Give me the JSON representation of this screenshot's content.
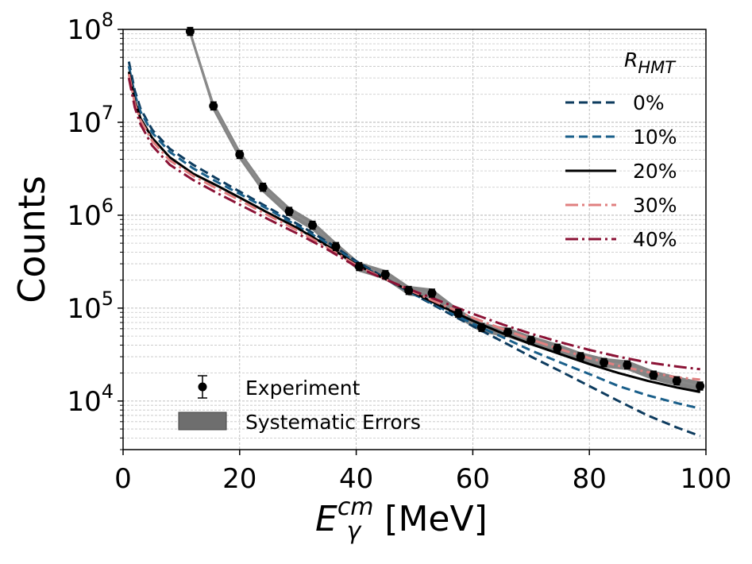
{
  "chart_data": {
    "type": "line",
    "title": "",
    "xlabel": {
      "main": "E",
      "sup": "cm",
      "sub": "γ",
      "unit": "[MeV]"
    },
    "ylabel": "Counts",
    "xlim": [
      0,
      100
    ],
    "ylim": [
      3000,
      100000000
    ],
    "yscale": "log",
    "grid": true,
    "x_ticks": [
      0,
      20,
      40,
      60,
      80,
      100
    ],
    "x_tick_labels": [
      "0",
      "20",
      "40",
      "60",
      "80",
      "100"
    ],
    "y_ticks": [
      10000,
      100000,
      1000000,
      10000000,
      100000000
    ],
    "y_tick_labels": [
      {
        "base": "10",
        "exp": "4"
      },
      {
        "base": "10",
        "exp": "5"
      },
      {
        "base": "10",
        "exp": "6"
      },
      {
        "base": "10",
        "exp": "7"
      },
      {
        "base": "10",
        "exp": "8"
      }
    ],
    "legend_model": {
      "title": {
        "main": "R",
        "sub": "HMT"
      },
      "placement": "top-right",
      "entries": [
        "0%",
        "10%",
        "20%",
        "30%",
        "40%"
      ]
    },
    "legend_experiment": {
      "placement": "bottom-left",
      "entries": [
        "Experiment",
        "Systematic Errors"
      ]
    },
    "series": [
      {
        "name": "0%",
        "color": "#0d3b5e",
        "dash": "dashed",
        "x": [
          1,
          2,
          3,
          5,
          8,
          12,
          16,
          20,
          25,
          30,
          35,
          40,
          45,
          50,
          55,
          60,
          65,
          70,
          75,
          80,
          85,
          90,
          95,
          99
        ],
        "y": [
          45000000,
          22000000,
          14000000,
          8300000,
          5200000,
          3500000,
          2500000,
          1800000,
          1200000,
          800000,
          520000,
          320000,
          210000,
          140000,
          94000,
          64000,
          44000,
          30000,
          21000,
          14500,
          10000,
          7000,
          5200,
          4200
        ]
      },
      {
        "name": "10%",
        "color": "#1a5f8a",
        "dash": "dashed",
        "x": [
          1,
          2,
          3,
          5,
          8,
          12,
          16,
          20,
          25,
          30,
          35,
          40,
          45,
          50,
          55,
          60,
          65,
          70,
          75,
          80,
          85,
          90,
          95,
          99
        ],
        "y": [
          40000000,
          20000000,
          13000000,
          7700000,
          4800000,
          3200000,
          2300000,
          1700000,
          1150000,
          760000,
          500000,
          310000,
          205000,
          140000,
          97000,
          68000,
          49000,
          35000,
          26000,
          19500,
          14500,
          11500,
          9500,
          8300
        ]
      },
      {
        "name": "20%",
        "color": "#000000",
        "dash": "solid",
        "x": [
          1,
          2,
          3,
          5,
          8,
          12,
          16,
          20,
          25,
          30,
          35,
          40,
          45,
          50,
          55,
          60,
          65,
          70,
          75,
          80,
          85,
          90,
          95,
          99
        ],
        "y": [
          35000000,
          17000000,
          11000000,
          6800000,
          4200000,
          2800000,
          2100000,
          1550000,
          1050000,
          720000,
          470000,
          295000,
          205000,
          145000,
          102000,
          73000,
          54000,
          41000,
          32000,
          25000,
          20000,
          16500,
          14000,
          12500
        ]
      },
      {
        "name": "30%",
        "color": "#e08080",
        "dash": "dashdot",
        "x": [
          1,
          2,
          3,
          5,
          8,
          12,
          16,
          20,
          25,
          30,
          35,
          40,
          45,
          50,
          55,
          60,
          65,
          70,
          75,
          80,
          85,
          90,
          95,
          99
        ],
        "y": [
          33000000,
          16000000,
          10500000,
          6300000,
          3900000,
          2650000,
          1950000,
          1450000,
          990000,
          680000,
          450000,
          290000,
          205000,
          148000,
          107000,
          79000,
          60000,
          46000,
          36000,
          29000,
          24000,
          20500,
          18000,
          17000
        ]
      },
      {
        "name": "40%",
        "color": "#8b1235",
        "dash": "dashdot",
        "x": [
          1,
          2,
          3,
          5,
          8,
          12,
          16,
          20,
          25,
          30,
          35,
          40,
          45,
          50,
          55,
          60,
          65,
          70,
          75,
          80,
          85,
          90,
          95,
          99
        ],
        "y": [
          30000000,
          14500000,
          9500000,
          5600000,
          3500000,
          2400000,
          1750000,
          1300000,
          900000,
          630000,
          430000,
          280000,
          203000,
          152000,
          115000,
          87000,
          67000,
          53000,
          43000,
          35500,
          30000,
          26000,
          23500,
          22000
        ]
      }
    ],
    "experiment": {
      "name": "Experiment",
      "color": "#000000",
      "band_name": "Systematic Errors",
      "band_color": "#6e6e6e",
      "band_rel": 0.12,
      "x": [
        11.5,
        15.5,
        20,
        24,
        28.5,
        32.5,
        36.5,
        40.5,
        45,
        49,
        53,
        57.5,
        61.5,
        66,
        70,
        74.5,
        78.5,
        82.5,
        86.5,
        91,
        95,
        99
      ],
      "y": [
        95000000,
        15000000,
        4500000,
        2000000,
        1100000,
        780000,
        460000,
        280000,
        230000,
        155000,
        145000,
        88000,
        62000,
        55000,
        45000,
        37000,
        30000,
        26000,
        24500,
        19000,
        16500,
        14500
      ]
    }
  }
}
